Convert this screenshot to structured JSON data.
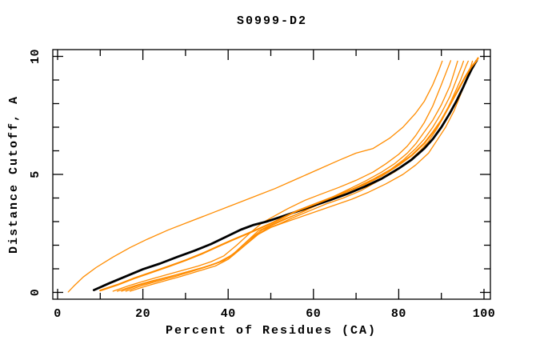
{
  "chart_data": {
    "type": "line",
    "title": "S0999-D2",
    "xlabel": "Percent of Residues (CA)",
    "ylabel": "Distance Cutoff, A",
    "xlim": [
      0,
      100
    ],
    "ylim": [
      0,
      10
    ],
    "x_major_ticks": [
      0,
      20,
      40,
      60,
      80,
      100
    ],
    "x_minor_ticks": [
      10,
      30,
      50,
      70,
      90
    ],
    "y_major_ticks": [
      0,
      5,
      10
    ],
    "y_minor_ticks": [
      1,
      2,
      3,
      4,
      6,
      7,
      8,
      9
    ],
    "grid": false,
    "legend": "none",
    "colors": {
      "model_curve": "#ff8c00",
      "reference_curve": "#000000",
      "frame": "#000000",
      "background": "#ffffff"
    },
    "series": [
      {
        "name": "orange-curve-top",
        "color": "#ff8c00",
        "stroke_width": 1.3,
        "points": [
          [
            2.5,
            0.02
          ],
          [
            4,
            0.3
          ],
          [
            6,
            0.65
          ],
          [
            9,
            1.05
          ],
          [
            13,
            1.5
          ],
          [
            17,
            1.9
          ],
          [
            21,
            2.25
          ],
          [
            26,
            2.65
          ],
          [
            31,
            3.0
          ],
          [
            36,
            3.35
          ],
          [
            41,
            3.7
          ],
          [
            46,
            4.05
          ],
          [
            51,
            4.4
          ],
          [
            56,
            4.8
          ],
          [
            61,
            5.2
          ],
          [
            66,
            5.6
          ],
          [
            70,
            5.9
          ],
          [
            74,
            6.1
          ],
          [
            78,
            6.55
          ],
          [
            81,
            7.0
          ],
          [
            84,
            7.6
          ],
          [
            86,
            8.1
          ],
          [
            88,
            8.8
          ],
          [
            89.5,
            9.45
          ],
          [
            90.2,
            9.8
          ]
        ]
      },
      {
        "name": "orange-curve-2",
        "color": "#ff8c00",
        "stroke_width": 1.3,
        "points": [
          [
            15,
            0.05
          ],
          [
            19,
            0.3
          ],
          [
            23,
            0.5
          ],
          [
            27,
            0.7
          ],
          [
            31,
            0.9
          ],
          [
            35,
            1.1
          ],
          [
            38,
            1.3
          ],
          [
            41,
            1.6
          ],
          [
            44,
            2.1
          ],
          [
            47,
            2.6
          ],
          [
            50,
            2.85
          ],
          [
            53,
            3.1
          ],
          [
            56,
            3.3
          ],
          [
            60,
            3.65
          ],
          [
            64,
            4.0
          ],
          [
            68,
            4.35
          ],
          [
            72,
            4.7
          ],
          [
            76,
            5.1
          ],
          [
            79,
            5.45
          ],
          [
            82,
            5.9
          ],
          [
            84,
            6.3
          ],
          [
            86,
            6.8
          ],
          [
            88,
            7.3
          ],
          [
            90,
            7.95
          ],
          [
            92,
            8.75
          ],
          [
            93.3,
            9.5
          ],
          [
            93.8,
            9.8
          ]
        ]
      },
      {
        "name": "orange-curve-3",
        "color": "#ff8c00",
        "stroke_width": 1.3,
        "points": [
          [
            16,
            0.05
          ],
          [
            20,
            0.3
          ],
          [
            24,
            0.5
          ],
          [
            28,
            0.7
          ],
          [
            32,
            0.92
          ],
          [
            36,
            1.15
          ],
          [
            39,
            1.35
          ],
          [
            42,
            1.75
          ],
          [
            45,
            2.25
          ],
          [
            48,
            2.65
          ],
          [
            51,
            2.9
          ],
          [
            54,
            3.15
          ],
          [
            58,
            3.45
          ],
          [
            62,
            3.8
          ],
          [
            66,
            4.1
          ],
          [
            70,
            4.45
          ],
          [
            74,
            4.8
          ],
          [
            78,
            5.2
          ],
          [
            81,
            5.6
          ],
          [
            84,
            6.1
          ],
          [
            86,
            6.5
          ],
          [
            88,
            7.0
          ],
          [
            90,
            7.6
          ],
          [
            92,
            8.3
          ],
          [
            93.5,
            9.0
          ],
          [
            94.8,
            9.6
          ],
          [
            95.2,
            9.8
          ]
        ]
      },
      {
        "name": "orange-curve-4",
        "color": "#ff8c00",
        "stroke_width": 1.3,
        "points": [
          [
            17,
            0.05
          ],
          [
            21,
            0.28
          ],
          [
            25,
            0.48
          ],
          [
            29,
            0.68
          ],
          [
            33,
            0.9
          ],
          [
            37,
            1.12
          ],
          [
            40,
            1.4
          ],
          [
            43,
            1.85
          ],
          [
            46,
            2.35
          ],
          [
            49,
            2.7
          ],
          [
            52,
            2.9
          ],
          [
            55,
            3.15
          ],
          [
            59,
            3.45
          ],
          [
            63,
            3.75
          ],
          [
            67,
            4.0
          ],
          [
            71,
            4.3
          ],
          [
            75,
            4.7
          ],
          [
            79,
            5.1
          ],
          [
            82,
            5.5
          ],
          [
            85,
            6.0
          ],
          [
            87,
            6.4
          ],
          [
            89,
            6.95
          ],
          [
            91,
            7.6
          ],
          [
            93,
            8.4
          ],
          [
            94.5,
            9.0
          ],
          [
            95.8,
            9.6
          ],
          [
            96.3,
            9.8
          ]
        ]
      },
      {
        "name": "orange-curve-5",
        "color": "#ff8c00",
        "stroke_width": 1.3,
        "points": [
          [
            14,
            0.05
          ],
          [
            18,
            0.28
          ],
          [
            22,
            0.48
          ],
          [
            26,
            0.66
          ],
          [
            30,
            0.85
          ],
          [
            34,
            1.05
          ],
          [
            38,
            1.28
          ],
          [
            41,
            1.55
          ],
          [
            44,
            2.0
          ],
          [
            47,
            2.45
          ],
          [
            50,
            2.75
          ],
          [
            53,
            2.95
          ],
          [
            57,
            3.2
          ],
          [
            61,
            3.45
          ],
          [
            65,
            3.7
          ],
          [
            69,
            3.95
          ],
          [
            73,
            4.25
          ],
          [
            77,
            4.6
          ],
          [
            81,
            5.0
          ],
          [
            84,
            5.4
          ],
          [
            87,
            5.9
          ],
          [
            89,
            6.45
          ],
          [
            91,
            7.0
          ],
          [
            93,
            7.7
          ],
          [
            95,
            8.6
          ],
          [
            96.5,
            9.35
          ],
          [
            97.3,
            9.8
          ]
        ]
      },
      {
        "name": "orange-curve-6",
        "color": "#ff8c00",
        "stroke_width": 1.3,
        "points": [
          [
            13,
            0.05
          ],
          [
            17,
            0.3
          ],
          [
            21,
            0.52
          ],
          [
            25,
            0.72
          ],
          [
            29,
            0.92
          ],
          [
            33,
            1.12
          ],
          [
            36,
            1.3
          ],
          [
            39,
            1.55
          ],
          [
            42,
            2.0
          ],
          [
            45,
            2.5
          ],
          [
            48,
            2.95
          ],
          [
            51,
            3.25
          ],
          [
            54,
            3.55
          ],
          [
            58,
            3.9
          ],
          [
            62,
            4.18
          ],
          [
            66,
            4.45
          ],
          [
            70,
            4.75
          ],
          [
            74,
            5.1
          ],
          [
            77,
            5.45
          ],
          [
            80,
            5.85
          ],
          [
            82,
            6.2
          ],
          [
            84,
            6.65
          ],
          [
            86,
            7.2
          ],
          [
            88,
            7.9
          ],
          [
            90,
            8.8
          ],
          [
            91.5,
            9.5
          ],
          [
            92.2,
            9.82
          ]
        ]
      },
      {
        "name": "black-reference-curve",
        "color": "#000000",
        "stroke_width": 2.8,
        "points": [
          [
            8.5,
            0.1
          ],
          [
            12,
            0.38
          ],
          [
            16,
            0.68
          ],
          [
            20,
            0.98
          ],
          [
            24,
            1.22
          ],
          [
            28,
            1.5
          ],
          [
            32,
            1.76
          ],
          [
            36,
            2.05
          ],
          [
            40,
            2.4
          ],
          [
            43,
            2.66
          ],
          [
            46,
            2.86
          ],
          [
            49,
            3.0
          ],
          [
            52,
            3.18
          ],
          [
            56,
            3.42
          ],
          [
            60,
            3.67
          ],
          [
            64,
            3.92
          ],
          [
            68,
            4.18
          ],
          [
            72,
            4.48
          ],
          [
            76,
            4.82
          ],
          [
            80,
            5.25
          ],
          [
            83,
            5.62
          ],
          [
            86,
            6.1
          ],
          [
            88,
            6.5
          ],
          [
            90,
            7.0
          ],
          [
            92,
            7.6
          ],
          [
            93.5,
            8.1
          ],
          [
            95,
            8.65
          ],
          [
            96,
            9.05
          ],
          [
            97,
            9.42
          ],
          [
            97.8,
            9.68
          ],
          [
            98.3,
            9.82
          ]
        ]
      },
      {
        "name": "orange-curve-thick",
        "color": "#ff8c00",
        "stroke_width": 2.2,
        "points": [
          [
            10,
            0.08
          ],
          [
            14,
            0.32
          ],
          [
            18,
            0.6
          ],
          [
            22,
            0.85
          ],
          [
            26,
            1.1
          ],
          [
            30,
            1.36
          ],
          [
            34,
            1.65
          ],
          [
            38,
            1.98
          ],
          [
            41,
            2.22
          ],
          [
            44,
            2.45
          ],
          [
            47,
            2.68
          ],
          [
            50,
            2.92
          ],
          [
            53,
            3.18
          ],
          [
            56,
            3.44
          ],
          [
            60,
            3.72
          ],
          [
            64,
            4.0
          ],
          [
            68,
            4.28
          ],
          [
            72,
            4.58
          ],
          [
            76,
            4.94
          ],
          [
            80,
            5.4
          ],
          [
            83,
            5.8
          ],
          [
            86,
            6.32
          ],
          [
            88,
            6.78
          ],
          [
            90,
            7.3
          ],
          [
            92,
            7.95
          ],
          [
            94,
            8.6
          ],
          [
            95.5,
            9.1
          ],
          [
            97,
            9.55
          ],
          [
            98.2,
            9.8
          ],
          [
            98.6,
            9.93
          ]
        ]
      }
    ]
  }
}
